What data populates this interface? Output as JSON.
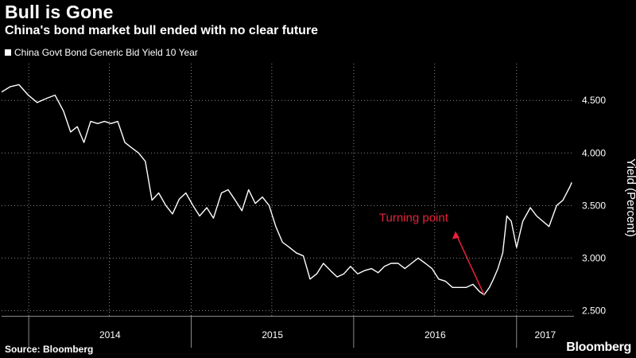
{
  "header": {
    "title": "Bull is Gone",
    "subtitle": "China's bond market bull ended with no clear future",
    "legend_label": "China Govt Bond Generic Bid Yield 10 Year"
  },
  "footer": {
    "source": "Source: Bloomberg",
    "brand": "Bloomberg"
  },
  "colors": {
    "background": "#000000",
    "line": "#ffffff",
    "annotation": "#e8213a",
    "grid": "#8a8a8a"
  },
  "chart_data": {
    "type": "line",
    "ylabel": "Yield (Percent)",
    "ylim": [
      2.45,
      4.85
    ],
    "xlim": [
      "2013-11-01",
      "2017-05-10"
    ],
    "y_ticks": [
      "2.500",
      "3.000",
      "3.500",
      "4.000",
      "4.500"
    ],
    "y_tick_values": [
      2.5,
      3.0,
      3.5,
      4.0,
      4.5
    ],
    "x_ticks": [
      "2014",
      "2015",
      "2016",
      "2017"
    ],
    "grid": true,
    "annotation": {
      "text": "Turning point",
      "date": "2016-10-20",
      "value": 2.65
    },
    "series": [
      {
        "name": "China Govt Bond Generic Bid Yield 10 Year",
        "x": [
          "2013-11-01",
          "2013-11-20",
          "2013-12-10",
          "2013-12-31",
          "2014-01-20",
          "2014-02-10",
          "2014-03-01",
          "2014-03-20",
          "2014-04-05",
          "2014-04-20",
          "2014-05-05",
          "2014-05-20",
          "2014-06-05",
          "2014-06-20",
          "2014-07-05",
          "2014-07-20",
          "2014-08-05",
          "2014-08-20",
          "2014-09-05",
          "2014-09-20",
          "2014-10-05",
          "2014-10-20",
          "2014-11-05",
          "2014-11-20",
          "2014-12-05",
          "2014-12-20",
          "2015-01-05",
          "2015-01-20",
          "2015-02-05",
          "2015-02-20",
          "2015-03-10",
          "2015-03-25",
          "2015-04-10",
          "2015-04-25",
          "2015-05-10",
          "2015-05-25",
          "2015-06-10",
          "2015-06-25",
          "2015-07-10",
          "2015-07-25",
          "2015-08-10",
          "2015-08-25",
          "2015-09-10",
          "2015-09-25",
          "2015-10-10",
          "2015-10-25",
          "2015-11-10",
          "2015-11-25",
          "2015-12-10",
          "2015-12-25",
          "2016-01-10",
          "2016-01-25",
          "2016-02-10",
          "2016-02-25",
          "2016-03-10",
          "2016-03-25",
          "2016-04-10",
          "2016-04-25",
          "2016-05-10",
          "2016-05-25",
          "2016-06-10",
          "2016-06-25",
          "2016-07-10",
          "2016-07-25",
          "2016-08-10",
          "2016-08-25",
          "2016-09-10",
          "2016-09-25",
          "2016-10-10",
          "2016-10-20",
          "2016-11-01",
          "2016-11-10",
          "2016-11-20",
          "2016-12-01",
          "2016-12-10",
          "2016-12-20",
          "2017-01-01",
          "2017-01-15",
          "2017-02-01",
          "2017-02-15",
          "2017-03-01",
          "2017-03-15",
          "2017-04-01",
          "2017-04-15",
          "2017-05-01",
          "2017-05-05"
        ],
        "values": [
          4.58,
          4.63,
          4.65,
          4.55,
          4.48,
          4.52,
          4.55,
          4.4,
          4.2,
          4.25,
          4.1,
          4.3,
          4.28,
          4.3,
          4.28,
          4.3,
          4.1,
          4.05,
          4.0,
          3.92,
          3.55,
          3.62,
          3.5,
          3.42,
          3.56,
          3.62,
          3.5,
          3.4,
          3.48,
          3.38,
          3.62,
          3.65,
          3.55,
          3.45,
          3.65,
          3.52,
          3.58,
          3.5,
          3.3,
          3.15,
          3.1,
          3.05,
          3.02,
          2.8,
          2.85,
          2.95,
          2.88,
          2.82,
          2.85,
          2.92,
          2.85,
          2.88,
          2.9,
          2.86,
          2.92,
          2.95,
          2.95,
          2.9,
          2.95,
          3.0,
          2.95,
          2.9,
          2.8,
          2.78,
          2.72,
          2.72,
          2.72,
          2.75,
          2.68,
          2.65,
          2.72,
          2.8,
          2.9,
          3.05,
          3.4,
          3.35,
          3.1,
          3.35,
          3.48,
          3.4,
          3.35,
          3.3,
          3.5,
          3.55,
          3.68,
          3.72
        ]
      }
    ]
  }
}
